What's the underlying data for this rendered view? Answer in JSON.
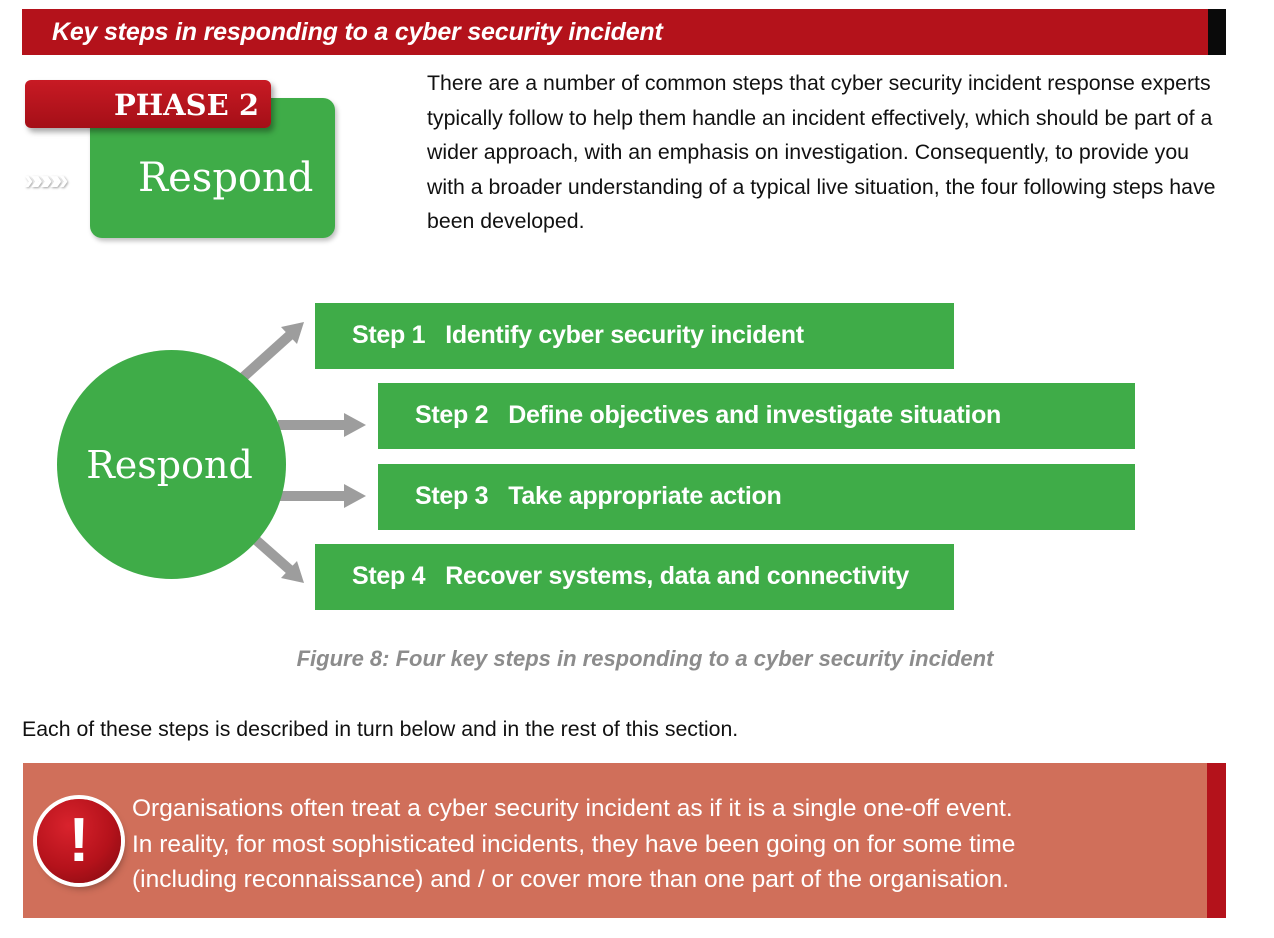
{
  "header": {
    "title": "Key steps in responding to a cyber security incident",
    "color": "#b4121b"
  },
  "phase": {
    "label": "PHASE 2",
    "chevrons": "»»»»",
    "stage": "Respond"
  },
  "intro": {
    "text": "There are a number of common steps that cyber security incident response experts typically follow to help them handle an incident effectively, which should be part of a wider approach, with an emphasis on investigation. Consequently, to provide you with a broader understanding of a typical live situation, the four following steps have been developed."
  },
  "diagram": {
    "center_label": "Respond",
    "steps": [
      {
        "number": "Step 1",
        "text": "Identify cyber security incident"
      },
      {
        "number": "Step 2",
        "text": "Define objectives and investigate situation"
      },
      {
        "number": "Step 3",
        "text": "Take appropriate action"
      },
      {
        "number": "Step 4",
        "text": "Recover systems, data and connectivity"
      }
    ],
    "caption": "Figure 8: Four key steps in responding to a cyber security incident",
    "step_color": "#3fac48",
    "arrow_color": "#9d9d9d"
  },
  "body": {
    "text": "Each of these steps is described in turn below and in the rest of this section."
  },
  "warning": {
    "icon": "exclamation-icon",
    "glyph": "!",
    "lines": [
      "Organisations often treat a cyber security incident as if it is a single one-off event.",
      "In reality, for most sophisticated incidents, they have been going on for some time",
      "(including reconnaissance) and / or cover more than one part of the organisation."
    ],
    "background": "#d06f5a"
  }
}
